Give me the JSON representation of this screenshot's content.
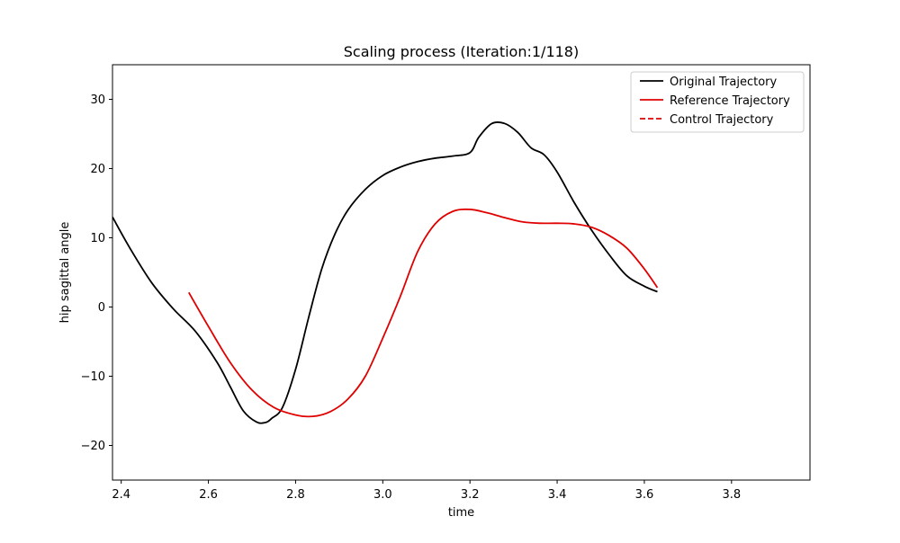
{
  "chart_data": {
    "type": "line",
    "title": "Scaling process (Iteration:1/118)",
    "xlabel": "time",
    "ylabel": "hip sagittal angle",
    "xlim": [
      2.38,
      3.98
    ],
    "ylim": [
      -25,
      35
    ],
    "xticks": [
      2.4,
      2.6,
      2.8,
      3.0,
      3.2,
      3.4,
      3.6,
      3.8
    ],
    "yticks": [
      -20,
      -10,
      0,
      10,
      20,
      30
    ],
    "xtick_labels": [
      "2.4",
      "2.6",
      "2.8",
      "3.0",
      "3.2",
      "3.4",
      "3.6",
      "3.8"
    ],
    "ytick_labels": [
      "−20",
      "−10",
      "0",
      "10",
      "20",
      "30"
    ],
    "grid": false,
    "legend_position": "top-right",
    "series": [
      {
        "name": "Original Trajectory",
        "color": "#000000",
        "style": "solid",
        "x": [
          2.38,
          2.42,
          2.47,
          2.52,
          2.57,
          2.62,
          2.65,
          2.68,
          2.71,
          2.73,
          2.745,
          2.77,
          2.8,
          2.83,
          2.86,
          2.89,
          2.92,
          2.96,
          3.0,
          3.04,
          3.08,
          3.12,
          3.16,
          3.2,
          3.22,
          3.25,
          3.28,
          3.31,
          3.34,
          3.37,
          3.4,
          3.44,
          3.48,
          3.52,
          3.56,
          3.6,
          3.63
        ],
        "y": [
          13,
          8.5,
          3.5,
          -0.3,
          -3.5,
          -8,
          -11.5,
          -15,
          -16.6,
          -16.7,
          -16.1,
          -14.5,
          -9,
          -1.5,
          5.5,
          10.5,
          14,
          17,
          19,
          20.2,
          21,
          21.5,
          21.8,
          22.3,
          24.5,
          26.5,
          26.5,
          25.2,
          23,
          22,
          19.5,
          15,
          11,
          7.5,
          4.5,
          3,
          2.2
        ]
      },
      {
        "name": "Reference Trajectory",
        "color": "#e00000",
        "style": "solid",
        "x": [
          2.555,
          2.6,
          2.65,
          2.7,
          2.75,
          2.8,
          2.84,
          2.88,
          2.92,
          2.96,
          3.0,
          3.04,
          3.08,
          3.12,
          3.16,
          3.2,
          3.24,
          3.28,
          3.32,
          3.36,
          3.4,
          3.44,
          3.48,
          3.52,
          3.56,
          3.6,
          3.63
        ],
        "y": [
          2.1,
          -2.8,
          -8,
          -12,
          -14.5,
          -15.6,
          -15.8,
          -15.1,
          -13.3,
          -10,
          -4.5,
          1.5,
          8,
          12,
          13.8,
          14.1,
          13.6,
          12.9,
          12.3,
          12.1,
          12.1,
          12,
          11.5,
          10.3,
          8.5,
          5.5,
          2.8
        ]
      },
      {
        "name": "Control Trajectory",
        "color": "#e00000",
        "style": "dashed",
        "x": [],
        "y": []
      }
    ]
  }
}
